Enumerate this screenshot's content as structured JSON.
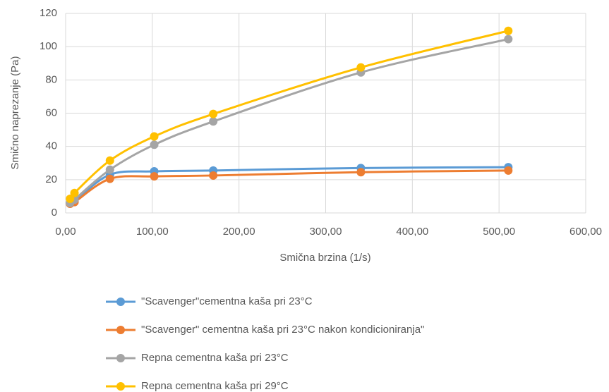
{
  "chart_data": {
    "type": "scatter-smooth",
    "xlabel": "Smična brzina (1/s)",
    "ylabel": "Smično naprezanje (Pa)",
    "x": [
      5.11,
      10.22,
      51.1,
      102.2,
      170.3,
      340.6,
      510.7
    ],
    "series": [
      {
        "name": "\"Scavenger\"cementna kaša pri 23°C",
        "color": "#5b9bd5",
        "values": [
          6,
          7,
          23,
          25,
          25.5,
          27,
          27.5
        ]
      },
      {
        "name": "\"Scavenger\" cementna kaša pri 23°C nakon kondicioniranja\"",
        "color": "#ed7d31",
        "values": [
          5.5,
          6.5,
          20.5,
          22,
          22.5,
          24.5,
          25.5
        ]
      },
      {
        "name": "Repna cementna kaša pri 23°C",
        "color": "#a5a5a5",
        "values": [
          6,
          8,
          26,
          41,
          55,
          84.5,
          104.5
        ]
      },
      {
        "name": "Repna cementna kaša pri 29°C",
        "color": "#ffc000",
        "values": [
          8.5,
          12,
          31.5,
          46,
          59.5,
          87.5,
          109.5
        ]
      }
    ],
    "xlim": [
      0,
      600
    ],
    "xticks": [
      {
        "value": 0,
        "label": "0,00"
      },
      {
        "value": 100,
        "label": "100,00"
      },
      {
        "value": 200,
        "label": "200,00"
      },
      {
        "value": 300,
        "label": "300,00"
      },
      {
        "value": 400,
        "label": "400,00"
      },
      {
        "value": 500,
        "label": "500,00"
      },
      {
        "value": 600,
        "label": "600,00"
      }
    ],
    "ylim": [
      0,
      120
    ],
    "yticks": [
      0,
      20,
      40,
      60,
      80,
      100,
      120
    ],
    "grid": true,
    "legend": "bottom"
  }
}
